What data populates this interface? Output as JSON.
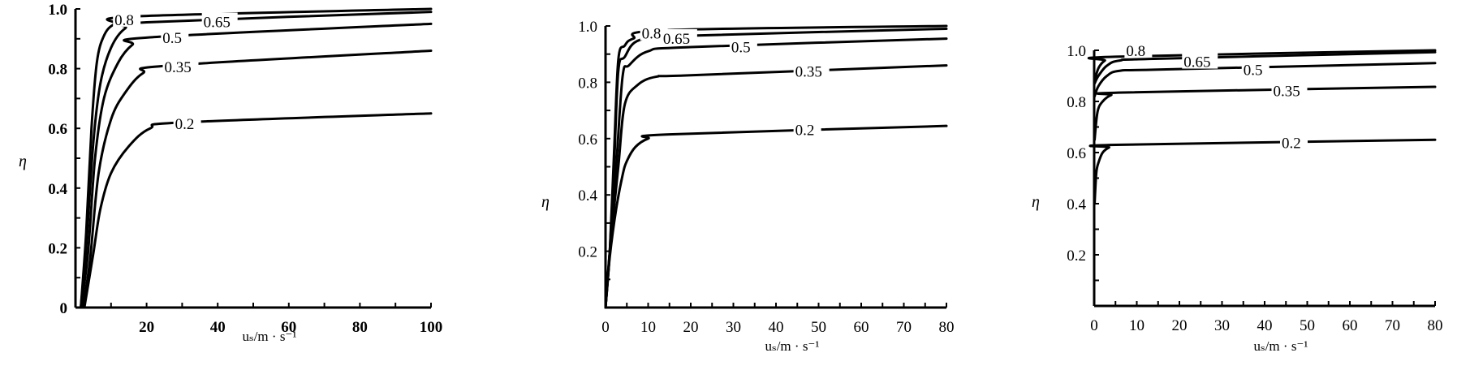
{
  "chart_data": [
    {
      "type": "line",
      "xlabel": "uₛ/m · s⁻¹",
      "ylabel": "η",
      "xlim": [
        0,
        100
      ],
      "ylim": [
        0,
        1.0
      ],
      "x_tick_labels": [
        "20",
        "40",
        "60",
        "80",
        "100"
      ],
      "y_tick_labels": [
        "0",
        "0.2",
        "0.4",
        "0.6",
        "0.8",
        "1.0"
      ],
      "grid": false,
      "series": [
        {
          "name": "0.8",
          "points": [
            [
              1.5,
              0
            ],
            [
              3,
              0.25
            ],
            [
              4.5,
              0.6
            ],
            [
              6,
              0.82
            ],
            [
              8,
              0.91
            ],
            [
              11,
              0.95
            ],
            [
              17,
              0.975
            ],
            [
              100,
              1.0
            ]
          ],
          "label": {
            "text": "0.8",
            "x": 11,
            "y": 0.965
          }
        },
        {
          "name": "0.65",
          "points": [
            [
              1.5,
              0
            ],
            [
              3,
              0.2
            ],
            [
              5,
              0.55
            ],
            [
              7,
              0.75
            ],
            [
              10,
              0.87
            ],
            [
              14,
              0.935
            ],
            [
              20,
              0.955
            ],
            [
              100,
              0.99
            ]
          ],
          "label": {
            "text": "0.65",
            "x": 36,
            "y": 0.958
          }
        },
        {
          "name": "0.5",
          "points": [
            [
              1.5,
              0
            ],
            [
              3.5,
              0.18
            ],
            [
              5.5,
              0.5
            ],
            [
              8,
              0.7
            ],
            [
              12,
              0.82
            ],
            [
              16,
              0.88
            ],
            [
              21,
              0.905
            ],
            [
              100,
              0.95
            ]
          ],
          "label": {
            "text": "0.5",
            "x": 24.5,
            "y": 0.905
          }
        },
        {
          "name": "0.35",
          "points": [
            [
              2,
              0
            ],
            [
              4,
              0.15
            ],
            [
              6.5,
              0.45
            ],
            [
              10,
              0.63
            ],
            [
              14,
              0.72
            ],
            [
              19,
              0.785
            ],
            [
              26,
              0.81
            ],
            [
              100,
              0.86
            ]
          ],
          "label": {
            "text": "0.35",
            "x": 25,
            "y": 0.807
          }
        },
        {
          "name": "0.2",
          "points": [
            [
              2.5,
              0
            ],
            [
              5,
              0.18
            ],
            [
              7,
              0.33
            ],
            [
              10,
              0.45
            ],
            [
              15,
              0.54
            ],
            [
              21,
              0.6
            ],
            [
              30,
              0.62
            ],
            [
              100,
              0.65
            ]
          ],
          "label": {
            "text": "0.2",
            "x": 28,
            "y": 0.617
          }
        }
      ]
    },
    {
      "type": "line",
      "xlabel": "uₛ/m · s⁻¹",
      "ylabel": "η",
      "xlim": [
        0,
        80
      ],
      "ylim": [
        0,
        1.0
      ],
      "x_tick_labels": [
        "0",
        "10",
        "20",
        "30",
        "40",
        "50",
        "60",
        "70",
        "80"
      ],
      "y_tick_labels": [
        "0.2",
        "0.4",
        "0.6",
        "0.8",
        "1.0"
      ],
      "grid": false,
      "series": [
        {
          "name": "0.8",
          "points": [
            [
              0,
              0
            ],
            [
              1,
              0.2
            ],
            [
              2,
              0.55
            ],
            [
              3,
              0.88
            ],
            [
              4.5,
              0.93
            ],
            [
              6.5,
              0.955
            ],
            [
              14,
              0.985
            ],
            [
              80,
              1.0
            ]
          ],
          "label": {
            "text": "0.8",
            "x": 8.5,
            "y": 0.975
          }
        },
        {
          "name": "0.65",
          "points": [
            [
              0,
              0
            ],
            [
              1,
              0.2
            ],
            [
              2,
              0.5
            ],
            [
              3,
              0.84
            ],
            [
              4.5,
              0.89
            ],
            [
              8,
              0.95
            ],
            [
              19,
              0.965
            ],
            [
              80,
              0.99
            ]
          ],
          "label": {
            "text": "0.65",
            "x": 13.5,
            "y": 0.957
          }
        },
        {
          "name": "0.5",
          "points": [
            [
              0,
              0
            ],
            [
              1,
              0.2
            ],
            [
              2.5,
              0.5
            ],
            [
              4,
              0.82
            ],
            [
              5.5,
              0.86
            ],
            [
              10,
              0.91
            ],
            [
              20,
              0.925
            ],
            [
              80,
              0.955
            ]
          ],
          "label": {
            "text": "0.5",
            "x": 29.5,
            "y": 0.927
          }
        },
        {
          "name": "0.35",
          "points": [
            [
              0,
              0
            ],
            [
              1,
              0.2
            ],
            [
              3,
              0.5
            ],
            [
              4.5,
              0.72
            ],
            [
              7.5,
              0.79
            ],
            [
              12,
              0.82
            ],
            [
              20,
              0.825
            ],
            [
              80,
              0.86
            ]
          ],
          "label": {
            "text": "0.35",
            "x": 44.5,
            "y": 0.84
          }
        },
        {
          "name": "0.2",
          "points": [
            [
              0,
              0
            ],
            [
              1,
              0.18
            ],
            [
              2.5,
              0.35
            ],
            [
              4,
              0.47
            ],
            [
              5,
              0.52
            ],
            [
              7,
              0.57
            ],
            [
              10,
              0.6
            ],
            [
              15,
              0.615
            ],
            [
              80,
              0.645
            ]
          ],
          "label": {
            "text": "0.2",
            "x": 44.5,
            "y": 0.632
          }
        }
      ]
    },
    {
      "type": "line",
      "xlabel": "uₛ/m · s⁻¹",
      "ylabel": "η",
      "xlim": [
        0,
        80
      ],
      "ylim": [
        0,
        1.0
      ],
      "x_tick_labels": [
        "0",
        "10",
        "20",
        "30",
        "40",
        "50",
        "60",
        "70",
        "80"
      ],
      "y_tick_labels": [
        "0.2",
        "0.4",
        "0.6",
        "0.8",
        "1.0"
      ],
      "grid": false,
      "series": [
        {
          "name": "0.8",
          "points": [
            [
              0.1,
              0.88
            ],
            [
              1,
              0.93
            ],
            [
              2.5,
              0.96
            ],
            [
              5,
              0.975
            ],
            [
              80,
              1.0
            ]
          ],
          "label": {
            "text": "0.8",
            "x": 7.5,
            "y": 1.0
          }
        },
        {
          "name": "0.65",
          "points": [
            [
              0.1,
              0.87
            ],
            [
              1,
              0.9
            ],
            [
              3,
              0.94
            ],
            [
              6,
              0.96
            ],
            [
              15,
              0.967
            ],
            [
              80,
              0.993
            ]
          ],
          "label": {
            "text": "0.65",
            "x": 21,
            "y": 0.957
          }
        },
        {
          "name": "0.5",
          "points": [
            [
              0.1,
              0.82
            ],
            [
              1,
              0.86
            ],
            [
              3,
              0.9
            ],
            [
              6,
              0.92
            ],
            [
              16,
              0.925
            ],
            [
              80,
              0.95
            ]
          ],
          "label": {
            "text": "0.5",
            "x": 35,
            "y": 0.925
          }
        },
        {
          "name": "0.35",
          "points": [
            [
              0.1,
              0.65
            ],
            [
              0.8,
              0.76
            ],
            [
              2,
              0.8
            ],
            [
              4,
              0.825
            ],
            [
              7,
              0.835
            ],
            [
              80,
              0.857
            ]
          ],
          "label": {
            "text": "0.35",
            "x": 42,
            "y": 0.843
          }
        },
        {
          "name": "0.2",
          "points": [
            [
              0.1,
              0.4
            ],
            [
              0.5,
              0.52
            ],
            [
              1,
              0.56
            ],
            [
              2,
              0.6
            ],
            [
              3.5,
              0.62
            ],
            [
              5,
              0.63
            ],
            [
              80,
              0.65
            ]
          ],
          "label": {
            "text": "0.2",
            "x": 44,
            "y": 0.64
          }
        }
      ]
    }
  ]
}
